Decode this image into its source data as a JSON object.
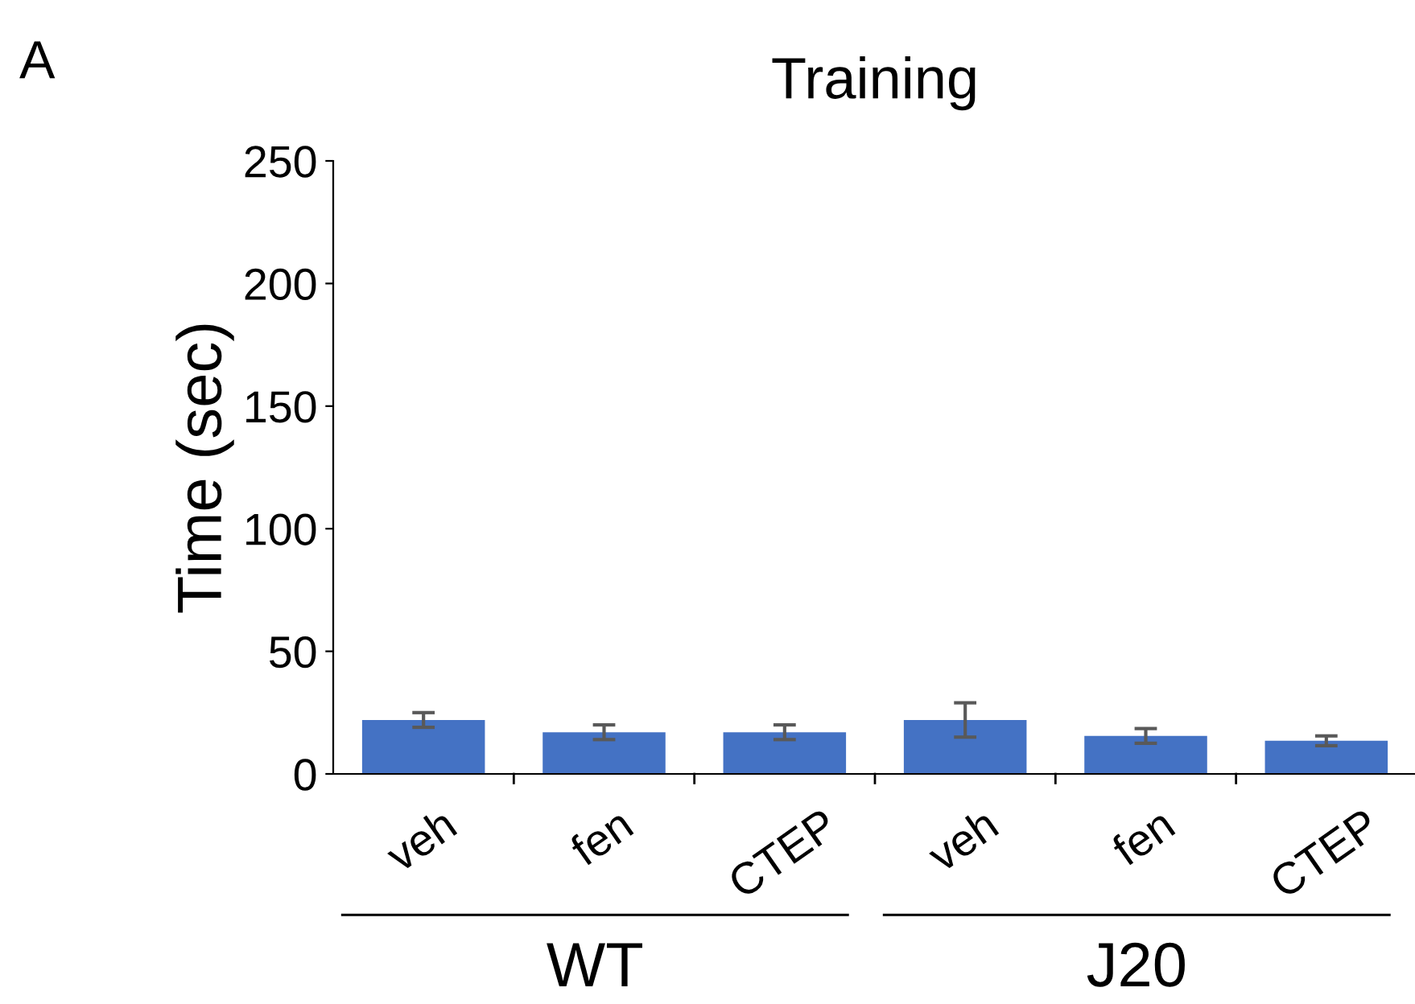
{
  "chart_data": {
    "type": "bar",
    "title": "Training",
    "ylabel": "Time (sec)",
    "categories": [
      "veh",
      "fen",
      "CTEP",
      "veh",
      "fen",
      "CTEP"
    ],
    "values": [
      22,
      17,
      17,
      22,
      15.5,
      13.5
    ],
    "errors": [
      3,
      3,
      3,
      7,
      3,
      2
    ],
    "color": "#4472c4",
    "ylim": [
      0,
      250
    ],
    "yticks": [
      0,
      50,
      100,
      150,
      200,
      250
    ],
    "grid": false,
    "annotations": [
      "A",
      "WT",
      "J20"
    ]
  }
}
